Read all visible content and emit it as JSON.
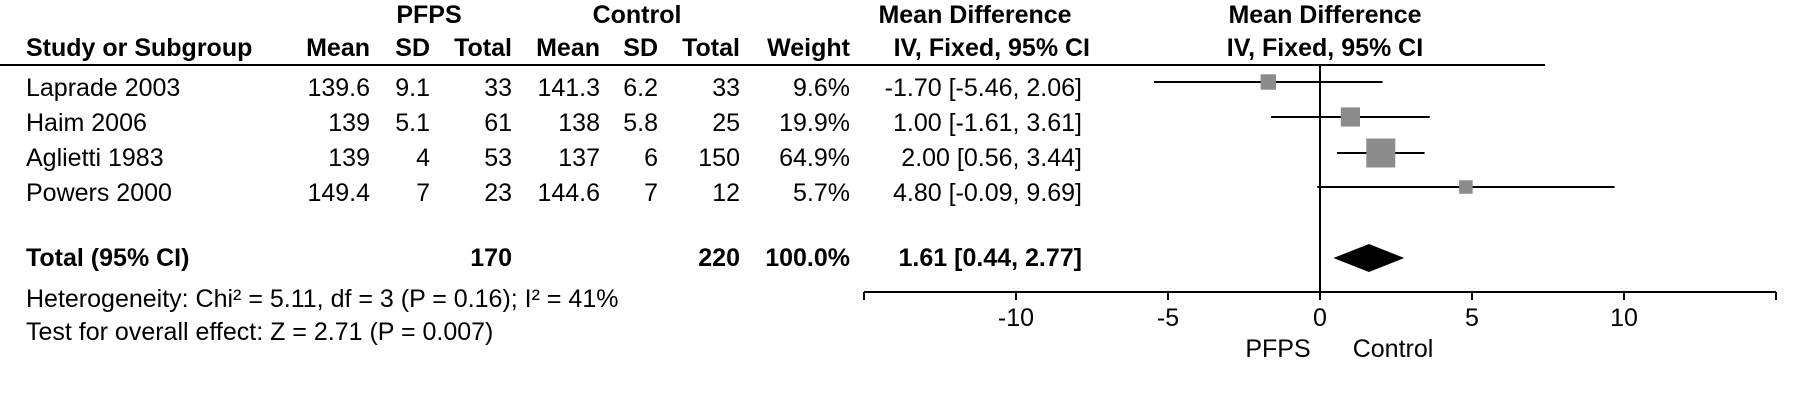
{
  "headers": {
    "group1": "PFPS",
    "group2": "Control",
    "md_title": "Mean Difference",
    "study_label": "Study or Subgroup",
    "mean": "Mean",
    "sd": "SD",
    "total": "Total",
    "weight": "Weight",
    "method": "IV, Fixed, 95% CI",
    "plot_title": "Mean Difference",
    "plot_method": "IV, Fixed, 95% CI"
  },
  "rows": [
    {
      "study": "Laprade 2003",
      "m1": "139.6",
      "sd1": "9.1",
      "n1": "33",
      "m2": "141.3",
      "sd2": "6.2",
      "n2": "33",
      "weight": "9.6%",
      "ci": "-1.70 [-5.46, 2.06]"
    },
    {
      "study": "Haim 2006",
      "m1": "139",
      "sd1": "5.1",
      "n1": "61",
      "m2": "138",
      "sd2": "5.8",
      "n2": "25",
      "weight": "19.9%",
      "ci": "1.00 [-1.61, 3.61]"
    },
    {
      "study": "Aglietti 1983",
      "m1": "139",
      "sd1": "4",
      "n1": "53",
      "m2": "137",
      "sd2": "6",
      "n2": "150",
      "weight": "64.9%",
      "ci": "2.00 [0.56, 3.44]"
    },
    {
      "study": "Powers 2000",
      "m1": "149.4",
      "sd1": "7",
      "n1": "23",
      "m2": "144.6",
      "sd2": "7",
      "n2": "12",
      "weight": "5.7%",
      "ci": "4.80 [-0.09, 9.69]"
    }
  ],
  "total": {
    "label": "Total (95% CI)",
    "n1": "170",
    "n2": "220",
    "weight": "100.0%",
    "ci": "1.61 [0.44, 2.77]"
  },
  "footer": {
    "heterogeneity": "Heterogeneity: Chi² = 5.11, df = 3 (P = 0.16); I² = 41%",
    "overall": "Test for overall effect: Z = 2.71 (P = 0.007)"
  },
  "axis_labels": {
    "left": "PFPS",
    "right": "Control"
  },
  "chart_data": {
    "type": "forest",
    "xlim": [
      -15,
      15
    ],
    "xticks": [
      -10,
      -5,
      0,
      5,
      10
    ],
    "studies": [
      {
        "name": "Laprade 2003",
        "md": -1.7,
        "lo": -5.46,
        "hi": 2.06,
        "weight": 9.6
      },
      {
        "name": "Haim 2006",
        "md": 1.0,
        "lo": -1.61,
        "hi": 3.61,
        "weight": 19.9
      },
      {
        "name": "Aglietti 1983",
        "md": 2.0,
        "lo": 0.56,
        "hi": 3.44,
        "weight": 64.9
      },
      {
        "name": "Powers 2000",
        "md": 4.8,
        "lo": -0.09,
        "hi": 9.69,
        "weight": 5.7
      }
    ],
    "pooled": {
      "md": 1.61,
      "lo": 0.44,
      "hi": 2.77
    },
    "colors": {
      "square": "#8c8c8c",
      "diamond": "#000000",
      "line": "#000000"
    }
  }
}
